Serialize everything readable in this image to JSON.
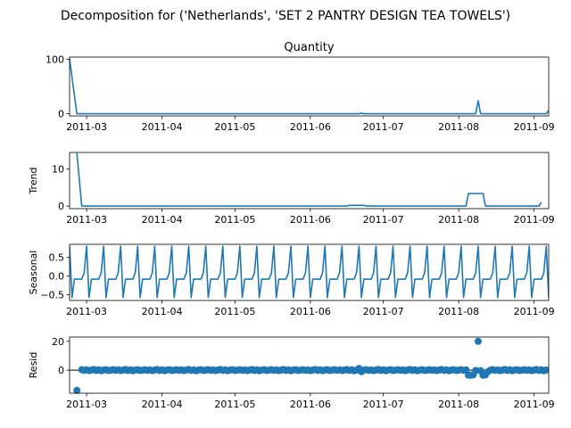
{
  "chart_data": {
    "type": "line",
    "suptitle": "Decomposition for ('Netherlands', 'SET 2 PANTRY DESIGN TEA TOWELS')",
    "x_tick_labels": [
      "2011-03",
      "2011-04",
      "2011-05",
      "2011-06",
      "2011-07",
      "2011-08",
      "2011-09"
    ],
    "x_tick_dates": [
      "2011-03-01",
      "2011-04-01",
      "2011-05-01",
      "2011-06-01",
      "2011-07-01",
      "2011-08-01",
      "2011-09-01"
    ],
    "xlim": [
      "2011-02-22",
      "2011-09-07"
    ],
    "line_color": "#1f77b4",
    "panels": [
      {
        "id": "observed",
        "title": "Quantity",
        "ylabel": "",
        "ylim": [
          -4,
          104
        ],
        "yticks": [
          0,
          100
        ],
        "kind": "line",
        "points": [
          [
            "2011-02-22",
            100
          ],
          [
            "2011-02-25",
            0
          ],
          [
            "2011-06-21",
            0
          ],
          [
            "2011-06-22",
            1
          ],
          [
            "2011-06-23",
            0
          ],
          [
            "2011-08-08",
            0
          ],
          [
            "2011-08-09",
            24
          ],
          [
            "2011-08-10",
            0
          ],
          [
            "2011-09-06",
            0
          ],
          [
            "2011-09-07",
            6
          ]
        ]
      },
      {
        "id": "trend",
        "title": "",
        "ylabel": "Trend",
        "ylim": [
          -0.7,
          14.5
        ],
        "yticks": [
          0,
          10
        ],
        "kind": "line",
        "points": [
          [
            "2011-02-25",
            14.3
          ],
          [
            "2011-02-27",
            0
          ],
          [
            "2011-06-16",
            0
          ],
          [
            "2011-06-17",
            0.2
          ],
          [
            "2011-06-23",
            0.2
          ],
          [
            "2011-06-24",
            0
          ],
          [
            "2011-08-04",
            0
          ],
          [
            "2011-08-05",
            3.4
          ],
          [
            "2011-08-11",
            3.4
          ],
          [
            "2011-08-12",
            0
          ],
          [
            "2011-09-03",
            0
          ],
          [
            "2011-09-04",
            1
          ]
        ]
      },
      {
        "id": "seasonal",
        "title": "",
        "ylabel": "Seasonal",
        "ylim": [
          -0.65,
          0.85
        ],
        "yticks": [
          0.5,
          0.0,
          -0.5
        ],
        "ytick_labels": [
          "0.5",
          "0.0",
          "−0.5"
        ],
        "kind": "seasonal",
        "start": "2011-02-22",
        "period_days": 7,
        "pattern": [
          0.8,
          -0.57,
          -0.08,
          -0.08,
          -0.08,
          -0.08,
          0.09
        ]
      },
      {
        "id": "resid",
        "title": "",
        "ylabel": "Resid",
        "ylim": [
          -16,
          23
        ],
        "yticks": [
          0,
          20
        ],
        "kind": "scatter",
        "start": "2011-02-27",
        "end": "2011-09-06",
        "baseline_noise": [
          0.6,
          -0.2,
          0.3,
          -0.5,
          0.1,
          0.8,
          -0.3,
          0.4,
          -0.6,
          0.2,
          0.5,
          -0.4,
          0.0
        ],
        "outliers": [
          [
            "2011-02-25",
            -14
          ],
          [
            "2011-06-21",
            1.2
          ],
          [
            "2011-06-22",
            -1
          ],
          [
            "2011-08-05",
            -3.5
          ],
          [
            "2011-08-06",
            -3.5
          ],
          [
            "2011-08-07",
            -3.2
          ],
          [
            "2011-08-09",
            20
          ],
          [
            "2011-08-11",
            -3.5
          ],
          [
            "2011-08-12",
            -3.3
          ],
          [
            "2011-08-13",
            -1
          ]
        ]
      }
    ]
  }
}
